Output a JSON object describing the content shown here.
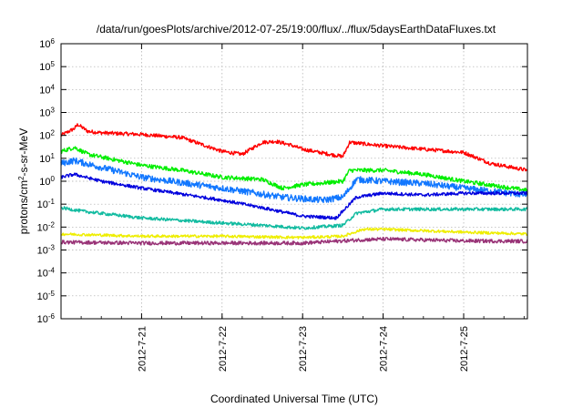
{
  "chart_data": {
    "type": "line",
    "title": "/data/run/goesPlots/archive/2012-07-25/19:00/flux/../flux/5daysEarthDataFluxes.txt",
    "xlabel": "Coordinated Universal Time (UTC)",
    "ylabel_parts": {
      "base": "protons/cm",
      "sup": "2",
      "rest": "-s-sr-MeV"
    },
    "y_scale": "log",
    "ylim": [
      1e-06,
      1000000.0
    ],
    "xlim": [
      "2012-07-20 00:00",
      "2012-07-25 19:00"
    ],
    "grid": true,
    "legend": "none",
    "y_ticks": [
      {
        "exp": -6,
        "base": "10",
        "sup": "-6"
      },
      {
        "exp": -5,
        "base": "10",
        "sup": "-5"
      },
      {
        "exp": -4,
        "base": "10",
        "sup": "-4"
      },
      {
        "exp": -3,
        "base": "10",
        "sup": "-3"
      },
      {
        "exp": -2,
        "base": "10",
        "sup": "-2"
      },
      {
        "exp": -1,
        "base": "10",
        "sup": "-1"
      },
      {
        "exp": 0,
        "base": "10",
        "sup": "0"
      },
      {
        "exp": 1,
        "base": "10",
        "sup": "1"
      },
      {
        "exp": 2,
        "base": "10",
        "sup": "2"
      },
      {
        "exp": 3,
        "base": "10",
        "sup": "3"
      },
      {
        "exp": 4,
        "base": "10",
        "sup": "4"
      },
      {
        "exp": 5,
        "base": "10",
        "sup": "5"
      },
      {
        "exp": 6,
        "base": "10",
        "sup": "6"
      }
    ],
    "x_ticks": [
      {
        "t": "2012-07-21 00:00",
        "label": "2012-7-21"
      },
      {
        "t": "2012-07-22 00:00",
        "label": "2012-7-22"
      },
      {
        "t": "2012-07-23 00:00",
        "label": "2012-7-23"
      },
      {
        "t": "2012-07-24 00:00",
        "label": "2012-7-24"
      },
      {
        "t": "2012-07-25 00:00",
        "label": "2012-7-25"
      }
    ],
    "series": [
      {
        "color": "#ff0000",
        "noise": 0.08,
        "values": [
          {
            "t": "2012-07-20 00:00",
            "y": 100
          },
          {
            "t": "2012-07-20 04:00",
            "y": 200
          },
          {
            "t": "2012-07-20 05:00",
            "y": 300
          },
          {
            "t": "2012-07-20 08:00",
            "y": 150
          },
          {
            "t": "2012-07-20 12:00",
            "y": 130
          },
          {
            "t": "2012-07-21 00:00",
            "y": 110
          },
          {
            "t": "2012-07-21 12:00",
            "y": 80
          },
          {
            "t": "2012-07-22 00:00",
            "y": 20
          },
          {
            "t": "2012-07-22 06:00",
            "y": 15
          },
          {
            "t": "2012-07-22 12:00",
            "y": 50
          },
          {
            "t": "2012-07-22 16:00",
            "y": 55
          },
          {
            "t": "2012-07-22 20:00",
            "y": 40
          },
          {
            "t": "2012-07-23 00:00",
            "y": 25
          },
          {
            "t": "2012-07-23 08:00",
            "y": 15
          },
          {
            "t": "2012-07-23 12:00",
            "y": 12
          },
          {
            "t": "2012-07-23 14:00",
            "y": 50
          },
          {
            "t": "2012-07-23 20:00",
            "y": 40
          },
          {
            "t": "2012-07-24 00:00",
            "y": 35
          },
          {
            "t": "2012-07-24 12:00",
            "y": 25
          },
          {
            "t": "2012-07-25 00:00",
            "y": 18
          },
          {
            "t": "2012-07-25 08:00",
            "y": 6
          },
          {
            "t": "2012-07-25 19:00",
            "y": 3
          }
        ]
      },
      {
        "color": "#00ee00",
        "noise": 0.09,
        "values": [
          {
            "t": "2012-07-20 00:00",
            "y": 20
          },
          {
            "t": "2012-07-20 04:00",
            "y": 30
          },
          {
            "t": "2012-07-20 08:00",
            "y": 15
          },
          {
            "t": "2012-07-21 00:00",
            "y": 5
          },
          {
            "t": "2012-07-21 12:00",
            "y": 3
          },
          {
            "t": "2012-07-22 00:00",
            "y": 1.5
          },
          {
            "t": "2012-07-22 12:00",
            "y": 1.2
          },
          {
            "t": "2012-07-22 18:00",
            "y": 0.5
          },
          {
            "t": "2012-07-23 00:00",
            "y": 0.7
          },
          {
            "t": "2012-07-23 12:00",
            "y": 1.0
          },
          {
            "t": "2012-07-23 14:00",
            "y": 3
          },
          {
            "t": "2012-07-24 00:00",
            "y": 3
          },
          {
            "t": "2012-07-24 12:00",
            "y": 2
          },
          {
            "t": "2012-07-25 00:00",
            "y": 1
          },
          {
            "t": "2012-07-25 19:00",
            "y": 0.4
          }
        ]
      },
      {
        "color": "#1177ff",
        "noise": 0.14,
        "values": [
          {
            "t": "2012-07-20 00:00",
            "y": 6
          },
          {
            "t": "2012-07-20 04:00",
            "y": 8
          },
          {
            "t": "2012-07-20 12:00",
            "y": 4
          },
          {
            "t": "2012-07-21 00:00",
            "y": 1.5
          },
          {
            "t": "2012-07-22 00:00",
            "y": 0.5
          },
          {
            "t": "2012-07-22 18:00",
            "y": 0.2
          },
          {
            "t": "2012-07-23 06:00",
            "y": 0.15
          },
          {
            "t": "2012-07-23 12:00",
            "y": 0.2
          },
          {
            "t": "2012-07-23 16:00",
            "y": 1.2
          },
          {
            "t": "2012-07-24 00:00",
            "y": 1.0
          },
          {
            "t": "2012-07-24 12:00",
            "y": 0.8
          },
          {
            "t": "2012-07-25 00:00",
            "y": 0.5
          },
          {
            "t": "2012-07-25 19:00",
            "y": 0.25
          }
        ]
      },
      {
        "color": "#0000dd",
        "noise": 0.07,
        "values": [
          {
            "t": "2012-07-20 00:00",
            "y": 1.5
          },
          {
            "t": "2012-07-20 04:00",
            "y": 2
          },
          {
            "t": "2012-07-20 12:00",
            "y": 1
          },
          {
            "t": "2012-07-21 00:00",
            "y": 0.5
          },
          {
            "t": "2012-07-22 00:00",
            "y": 0.15
          },
          {
            "t": "2012-07-22 12:00",
            "y": 0.07
          },
          {
            "t": "2012-07-23 00:00",
            "y": 0.03
          },
          {
            "t": "2012-07-23 10:00",
            "y": 0.025
          },
          {
            "t": "2012-07-23 16:00",
            "y": 0.2
          },
          {
            "t": "2012-07-24 00:00",
            "y": 0.3
          },
          {
            "t": "2012-07-24 12:00",
            "y": 0.25
          },
          {
            "t": "2012-07-25 00:00",
            "y": 0.3
          },
          {
            "t": "2012-07-25 19:00",
            "y": 0.3
          }
        ]
      },
      {
        "color": "#11bba0",
        "noise": 0.07,
        "values": [
          {
            "t": "2012-07-20 00:00",
            "y": 0.07
          },
          {
            "t": "2012-07-20 06:00",
            "y": 0.05
          },
          {
            "t": "2012-07-21 00:00",
            "y": 0.025
          },
          {
            "t": "2012-07-22 00:00",
            "y": 0.015
          },
          {
            "t": "2012-07-22 12:00",
            "y": 0.012
          },
          {
            "t": "2012-07-23 00:00",
            "y": 0.009
          },
          {
            "t": "2012-07-23 12:00",
            "y": 0.012
          },
          {
            "t": "2012-07-23 16:00",
            "y": 0.04
          },
          {
            "t": "2012-07-24 00:00",
            "y": 0.06
          },
          {
            "t": "2012-07-25 00:00",
            "y": 0.06
          },
          {
            "t": "2012-07-25 19:00",
            "y": 0.06
          }
        ]
      },
      {
        "color": "#eeee00",
        "noise": 0.06,
        "values": [
          {
            "t": "2012-07-20 00:00",
            "y": 0.005
          },
          {
            "t": "2012-07-21 00:00",
            "y": 0.004
          },
          {
            "t": "2012-07-22 00:00",
            "y": 0.004
          },
          {
            "t": "2012-07-23 00:00",
            "y": 0.0035
          },
          {
            "t": "2012-07-23 12:00",
            "y": 0.004
          },
          {
            "t": "2012-07-23 18:00",
            "y": 0.008
          },
          {
            "t": "2012-07-24 00:00",
            "y": 0.008
          },
          {
            "t": "2012-07-25 00:00",
            "y": 0.006
          },
          {
            "t": "2012-07-25 19:00",
            "y": 0.005
          }
        ]
      },
      {
        "color": "#993377",
        "noise": 0.08,
        "values": [
          {
            "t": "2012-07-20 00:00",
            "y": 0.0022
          },
          {
            "t": "2012-07-21 00:00",
            "y": 0.002
          },
          {
            "t": "2012-07-22 00:00",
            "y": 0.002
          },
          {
            "t": "2012-07-23 00:00",
            "y": 0.002
          },
          {
            "t": "2012-07-23 18:00",
            "y": 0.0028
          },
          {
            "t": "2012-07-24 00:00",
            "y": 0.003
          },
          {
            "t": "2012-07-25 00:00",
            "y": 0.0025
          },
          {
            "t": "2012-07-25 19:00",
            "y": 0.0024
          }
        ]
      }
    ]
  }
}
